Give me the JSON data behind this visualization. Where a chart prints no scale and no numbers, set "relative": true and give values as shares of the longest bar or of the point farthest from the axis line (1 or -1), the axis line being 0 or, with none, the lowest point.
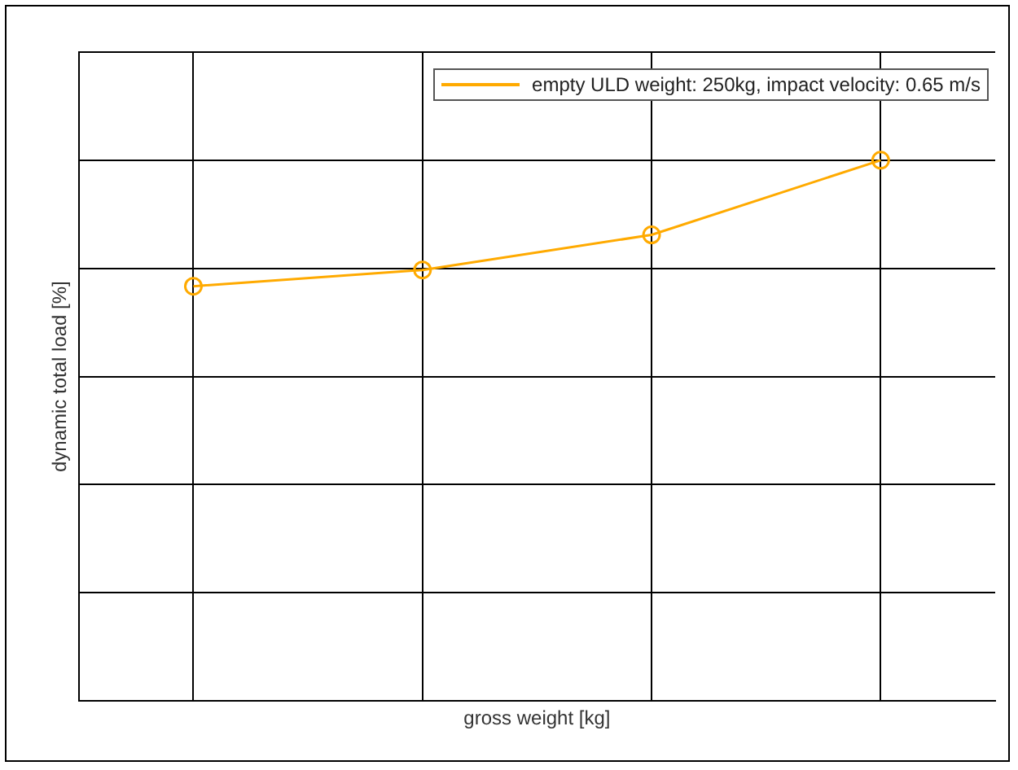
{
  "chart_data": {
    "type": "line",
    "xlabel": "gross weight [kg]",
    "ylabel": "dynamic total load [%]",
    "relative": true,
    "categories": [
      null,
      null,
      null,
      null
    ],
    "series": [
      {
        "name": "empty ULD weight: 250kg, impact velocity: 0.65 m/s",
        "color": "#ffaa00",
        "values": [
          0.767,
          0.797,
          0.862,
          1
        ]
      }
    ],
    "marker": "circle",
    "grid": true,
    "legend": "top right"
  }
}
